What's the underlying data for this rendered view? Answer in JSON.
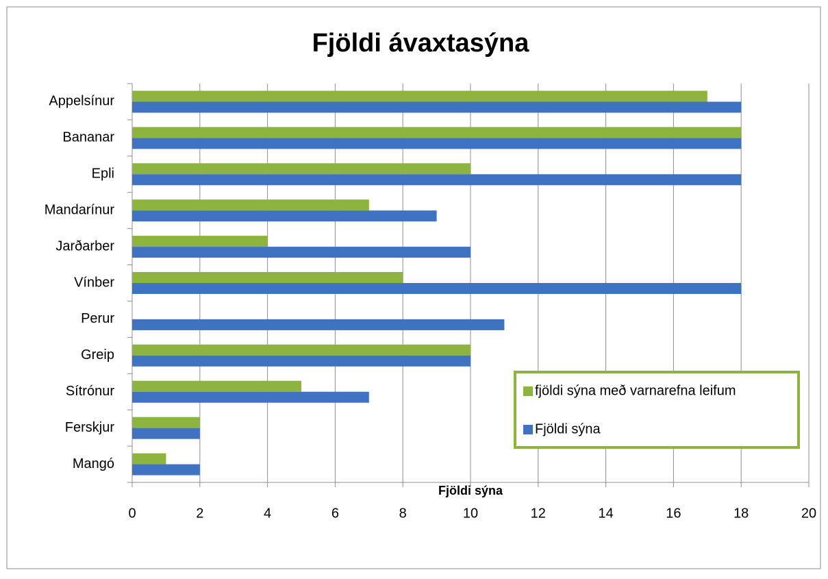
{
  "chart_data": {
    "type": "bar",
    "orientation": "horizontal",
    "title": "Fjöldi ávaxtasýna",
    "x_label": "Fjöldi sýna",
    "categories": [
      "Appelsínur",
      "Bananar",
      "Epli",
      "Mandarínur",
      "Jarðarber",
      "Vínber",
      "Perur",
      "Greip",
      "Sítrónur",
      "Ferskjur",
      "Mangó"
    ],
    "series": [
      {
        "name": "fjöldi sýna með varnarefna leifum",
        "color": "#8db43e",
        "values": [
          17,
          18,
          10,
          7,
          4,
          8,
          0,
          10,
          5,
          2,
          1
        ]
      },
      {
        "name": "Fjöldi sýna",
        "color": "#3f72c0",
        "values": [
          18,
          18,
          18,
          9,
          10,
          18,
          11,
          10,
          7,
          2,
          2
        ]
      }
    ],
    "xlim": [
      0,
      20
    ],
    "xticks": [
      0,
      2,
      4,
      6,
      8,
      10,
      12,
      14,
      16,
      18,
      20
    ],
    "grid": true,
    "legend": "lower right"
  }
}
